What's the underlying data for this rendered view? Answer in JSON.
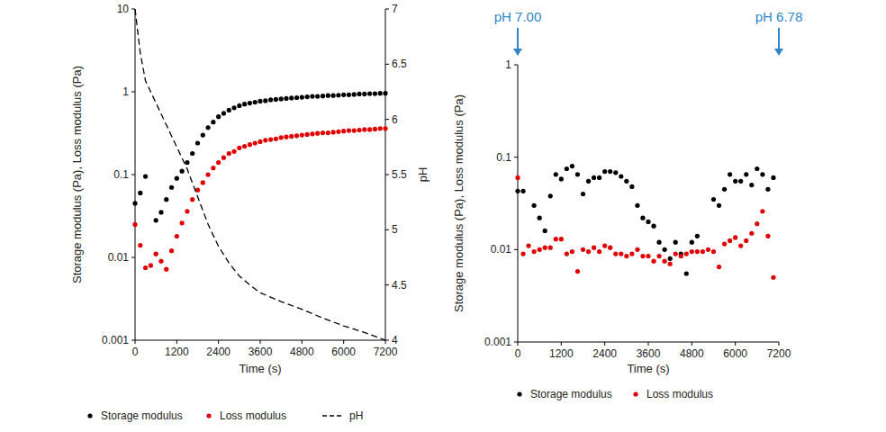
{
  "chart_data": [
    {
      "type": "scatter",
      "log": "y",
      "grid": false,
      "legend": "bottom",
      "x_label": "Time (s)",
      "y_label": "Storage modulus (Pa), Loss modulus (Pa)",
      "y2_label": "pH",
      "xlim": [
        0,
        7200
      ],
      "xticks": [
        0,
        1200,
        2400,
        3600,
        4800,
        6000,
        7200
      ],
      "ylim": [
        0.001,
        10
      ],
      "yticks": [
        0.001,
        0.01,
        0.1,
        1,
        10
      ],
      "y2lim": [
        4,
        7
      ],
      "y2ticks": [
        4,
        4.5,
        5,
        5.5,
        6,
        6.5,
        7
      ],
      "x": [
        0,
        150,
        300,
        450,
        600,
        750,
        900,
        1050,
        1200,
        1350,
        1500,
        1650,
        1800,
        1950,
        2100,
        2250,
        2400,
        2550,
        2700,
        2850,
        3000,
        3150,
        3300,
        3450,
        3600,
        3750,
        3900,
        4050,
        4200,
        4350,
        4500,
        4650,
        4800,
        4950,
        5100,
        5250,
        5400,
        5550,
        5700,
        5850,
        6000,
        6150,
        6300,
        6450,
        6600,
        6750,
        6900,
        7050,
        7200
      ],
      "series": [
        {
          "name": "Storage modulus",
          "type": "scatter",
          "marker": "circle",
          "color": "#000000",
          "values": [
            0.045,
            0.06,
            0.095,
            null,
            0.028,
            0.035,
            0.05,
            0.07,
            0.09,
            0.11,
            0.14,
            0.18,
            0.24,
            0.3,
            0.37,
            0.43,
            0.5,
            0.55,
            0.6,
            0.64,
            0.68,
            0.71,
            0.73,
            0.75,
            0.77,
            0.78,
            0.8,
            0.81,
            0.82,
            0.83,
            0.84,
            0.85,
            0.86,
            0.87,
            0.88,
            0.88,
            0.89,
            0.9,
            0.9,
            0.91,
            0.92,
            0.92,
            0.93,
            0.94,
            0.94,
            0.95,
            0.95,
            0.96,
            0.96
          ]
        },
        {
          "name": "Loss modulus",
          "type": "scatter",
          "marker": "circle",
          "color": "#e00000",
          "values": [
            0.025,
            0.014,
            0.0075,
            0.008,
            0.011,
            0.009,
            0.0072,
            0.012,
            0.018,
            0.026,
            0.036,
            0.05,
            0.065,
            0.08,
            0.1,
            0.12,
            0.14,
            0.16,
            0.18,
            0.19,
            0.21,
            0.22,
            0.23,
            0.24,
            0.25,
            0.26,
            0.265,
            0.27,
            0.28,
            0.285,
            0.29,
            0.295,
            0.3,
            0.305,
            0.31,
            0.315,
            0.32,
            0.32,
            0.325,
            0.33,
            0.335,
            0.34,
            0.34,
            0.345,
            0.35,
            0.35,
            0.355,
            0.36,
            0.36
          ]
        },
        {
          "name": "pH",
          "type": "line",
          "line_style": "dashed",
          "color": "#000000",
          "axis": "y2",
          "x": [
            0,
            150,
            300,
            600,
            900,
            1200,
            1500,
            1800,
            2100,
            2400,
            2700,
            3000,
            3300,
            3600,
            4200,
            4800,
            5400,
            6000,
            6600,
            7200
          ],
          "values": [
            7,
            6.6,
            6.35,
            6.15,
            5.95,
            5.75,
            5.55,
            5.3,
            5.05,
            4.85,
            4.7,
            4.58,
            4.5,
            4.43,
            4.35,
            4.28,
            4.2,
            4.13,
            4.07,
            4
          ]
        }
      ]
    },
    {
      "type": "scatter",
      "log": "y",
      "grid": false,
      "legend": "bottom",
      "x_label": "Time (s)",
      "y_label": "Storage modulus (Pa), Loss modulus (Pa)",
      "xlim": [
        0,
        7200
      ],
      "xticks": [
        0,
        1200,
        2400,
        3600,
        4800,
        6000,
        7200
      ],
      "ylim": [
        0.001,
        1
      ],
      "yticks": [
        0.001,
        0.01,
        0.1,
        1
      ],
      "annotations": [
        {
          "text": "pH 7.00",
          "x": 0,
          "color": "#2e86c8"
        },
        {
          "text": "pH 6.78",
          "x": 7200,
          "color": "#2e86c8"
        }
      ],
      "x": [
        0,
        150,
        300,
        450,
        600,
        750,
        900,
        1050,
        1200,
        1350,
        1500,
        1650,
        1800,
        1950,
        2100,
        2250,
        2400,
        2550,
        2700,
        2850,
        3000,
        3150,
        3300,
        3450,
        3600,
        3750,
        3900,
        4050,
        4200,
        4350,
        4500,
        4650,
        4800,
        4950,
        5100,
        5250,
        5400,
        5550,
        5700,
        5850,
        6000,
        6150,
        6300,
        6450,
        6600,
        6750,
        6900,
        7050
      ],
      "series": [
        {
          "name": "Storage modulus",
          "type": "scatter",
          "marker": "circle",
          "color": "#000000",
          "values": [
            0.043,
            0.043,
            null,
            0.03,
            0.022,
            0.016,
            0.038,
            0.065,
            0.058,
            0.075,
            0.08,
            0.065,
            0.04,
            0.055,
            0.06,
            0.06,
            0.07,
            0.07,
            0.068,
            0.062,
            0.055,
            0.048,
            0.03,
            0.022,
            0.02,
            0.018,
            0.012,
            0.01,
            0.008,
            0.012,
            0.009,
            0.0055,
            0.012,
            0.014,
            null,
            null,
            0.035,
            0.03,
            0.045,
            0.065,
            0.055,
            0.055,
            0.065,
            0.05,
            0.075,
            0.065,
            0.045,
            0.06
          ]
        },
        {
          "name": "Loss modulus",
          "type": "scatter",
          "marker": "circle",
          "color": "#e00000",
          "values": [
            0.06,
            0.009,
            0.011,
            0.0095,
            0.01,
            0.0105,
            0.0105,
            0.013,
            0.013,
            0.009,
            0.0095,
            0.0058,
            0.01,
            0.0095,
            0.0105,
            0.0095,
            0.011,
            0.0105,
            0.009,
            0.009,
            0.0085,
            0.009,
            0.01,
            0.0085,
            0.0085,
            0.0075,
            0.0085,
            0.0075,
            0.007,
            0.009,
            0.0085,
            0.009,
            0.0095,
            0.0095,
            0.0095,
            0.01,
            0.0095,
            0.0065,
            0.0115,
            0.0125,
            0.0135,
            0.011,
            0.0125,
            0.015,
            0.019,
            0.026,
            0.014,
            0.005
          ]
        }
      ]
    }
  ]
}
